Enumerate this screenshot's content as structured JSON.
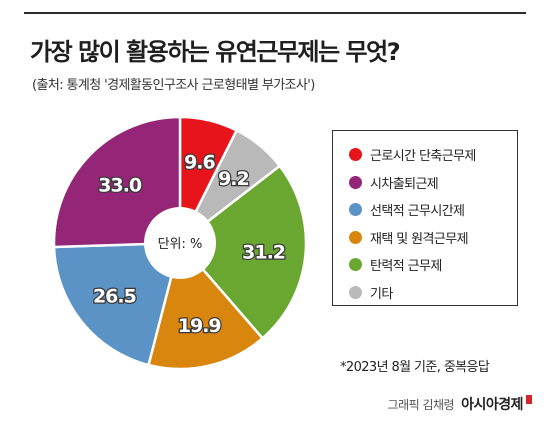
{
  "header": {
    "title": "가장 많이 활용하는 유연근무제는 무엇?",
    "source": "(출처: 통계청 '경제활동인구조사 근로형태별 부가조사')"
  },
  "chart_data": {
    "type": "pie",
    "donut": true,
    "center_label": "단위: %",
    "start": "top",
    "direction": "clockwise",
    "categories": [
      "근로시간 단축근무제",
      "시차출퇴근제",
      "선택적 근무시간제",
      "재택 및 원격근무제",
      "탄력적 근무제",
      "기타"
    ],
    "values": [
      9.6,
      33.0,
      26.5,
      19.9,
      31.2,
      9.2
    ],
    "value_labels": [
      "9.6",
      "33.0",
      "26.5",
      "19.9",
      "31.2",
      "9.2"
    ],
    "colors": [
      "#e8141c",
      "#952577",
      "#5b93c6",
      "#d9860f",
      "#6aa730",
      "#b9b9b9"
    ],
    "slice_order": [
      0,
      5,
      4,
      3,
      2,
      1
    ],
    "legend_position": "right"
  },
  "footer": {
    "note": "*2023년 8월 기준, 중복응답",
    "credit": "그래픽 김채령",
    "brand": "아시아경제"
  }
}
